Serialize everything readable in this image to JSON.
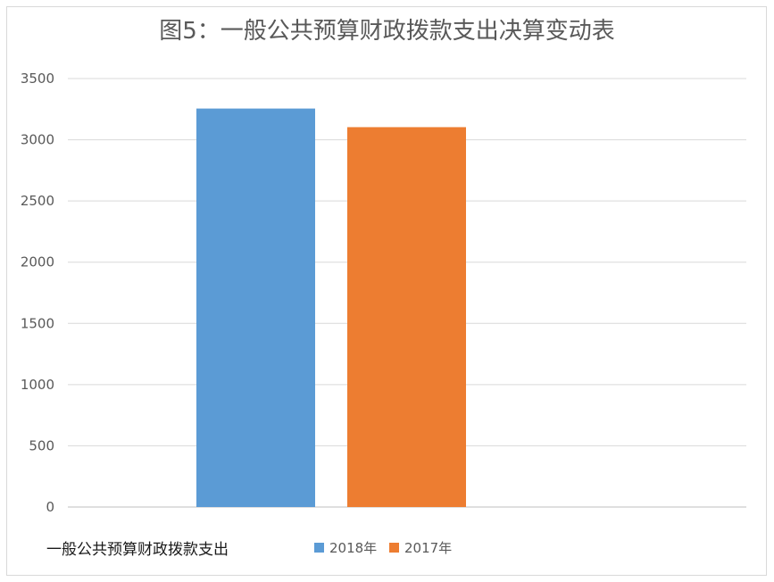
{
  "chart_data": {
    "type": "bar",
    "title": "图5：一般公共预算财政拨款支出决算变动表",
    "categories": [
      "一般公共预算财政拨款支出"
    ],
    "series": [
      {
        "name": "2018年",
        "values": [
          3255
        ],
        "color": "#5b9bd5"
      },
      {
        "name": "2017年",
        "values": [
          3103
        ],
        "color": "#ed7d31"
      }
    ],
    "ylim": [
      0,
      3500
    ],
    "yticks": [
      0,
      500,
      1000,
      1500,
      2000,
      2500,
      3000,
      3500
    ],
    "grid": true,
    "legend": "bottom"
  }
}
